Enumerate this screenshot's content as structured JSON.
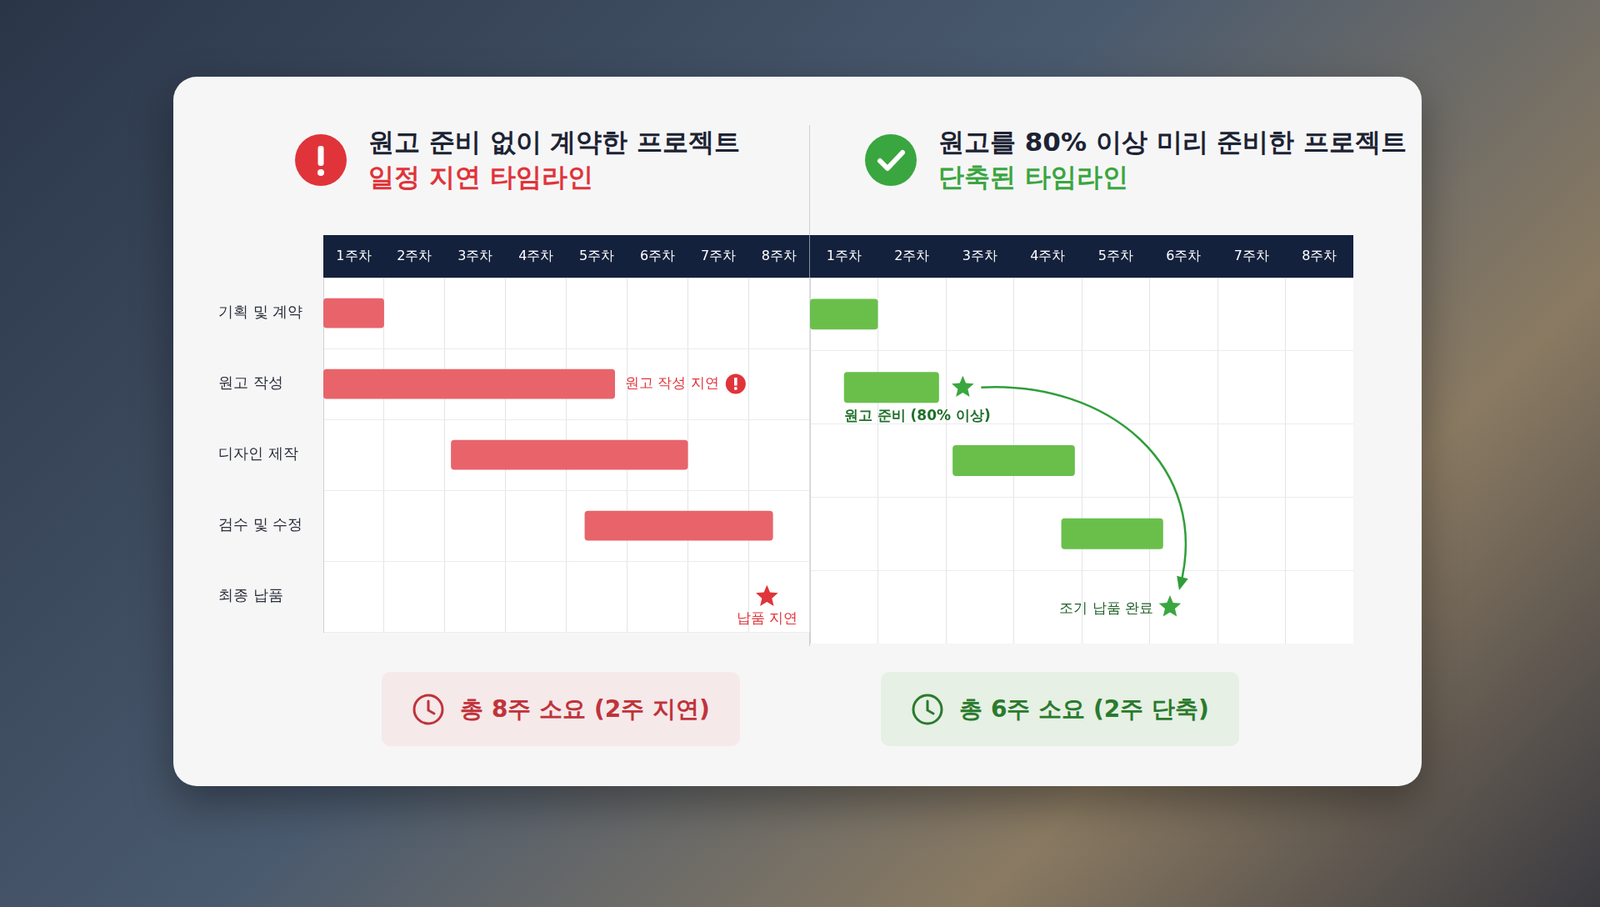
{
  "chart_data": [
    {
      "type": "bar",
      "orientation": "horizontal",
      "title": "원고 준비 없이 계약한 프로젝트",
      "subtitle": "일정 지연 타임라인",
      "categories": [
        "기획 및 계약",
        "원고 작성",
        "디자인 제작",
        "검수 및 수정",
        "최종 납품"
      ],
      "values": [
        [
          0,
          1
        ],
        [
          0,
          4.8
        ],
        [
          2.1,
          6
        ],
        [
          4.3,
          7.4
        ],
        null
      ],
      "color": "#e8646a",
      "xlim": [
        0,
        8
      ],
      "xticks": [
        {
          "value": 0.5,
          "label": "1주차"
        },
        {
          "value": 1.5,
          "label": "2주차"
        },
        {
          "value": 2.5,
          "label": "3주차"
        },
        {
          "value": 3.5,
          "label": "4주차"
        },
        {
          "value": 4.5,
          "label": "5주차"
        },
        {
          "value": 5.5,
          "label": "6주차"
        },
        {
          "value": 6.5,
          "label": "7주차"
        },
        {
          "value": 7.5,
          "label": "8주차"
        }
      ],
      "grid": true,
      "annotations": [
        {
          "text": "원고 작성 지연",
          "row": 1
        }
      ],
      "milestones": [
        {
          "x": 7.3,
          "row": 4,
          "label": "납품 지연"
        }
      ],
      "total": "총 8주 소요 (2주 지연)"
    },
    {
      "type": "bar",
      "orientation": "horizontal",
      "title": "원고를 80% 이상 미리 준비한 프로젝트",
      "subtitle": "단축된 타임라인",
      "categories": [
        null,
        null,
        null,
        null,
        null
      ],
      "values": [
        [
          0,
          1
        ],
        [
          0.5,
          1.9
        ],
        [
          2.1,
          3.9
        ],
        [
          3.7,
          5.2
        ],
        null
      ],
      "color": "#6abf4b",
      "xlim": [
        0,
        8
      ],
      "xticks": [
        {
          "value": 0.5,
          "label": "1주차"
        },
        {
          "value": 1.5,
          "label": "2주차"
        },
        {
          "value": 2.5,
          "label": "3주차"
        },
        {
          "value": 3.5,
          "label": "4주차"
        },
        {
          "value": 4.5,
          "label": "5주차"
        },
        {
          "value": 5.5,
          "label": "6주차"
        },
        {
          "value": 6.5,
          "label": "7주차"
        },
        {
          "value": 7.5,
          "label": "8주차"
        }
      ],
      "grid": true,
      "tick_labels": "x",
      "annotations": [
        {
          "text": "원고 준비 (80% 이상)",
          "row": 1
        }
      ],
      "milestones": [
        {
          "x": 2.25,
          "row": 1
        },
        {
          "x": 5.3,
          "row": 4,
          "label": "조기 납품 완료"
        }
      ],
      "total": "총 6주 소요 (2주 단축)"
    }
  ]
}
